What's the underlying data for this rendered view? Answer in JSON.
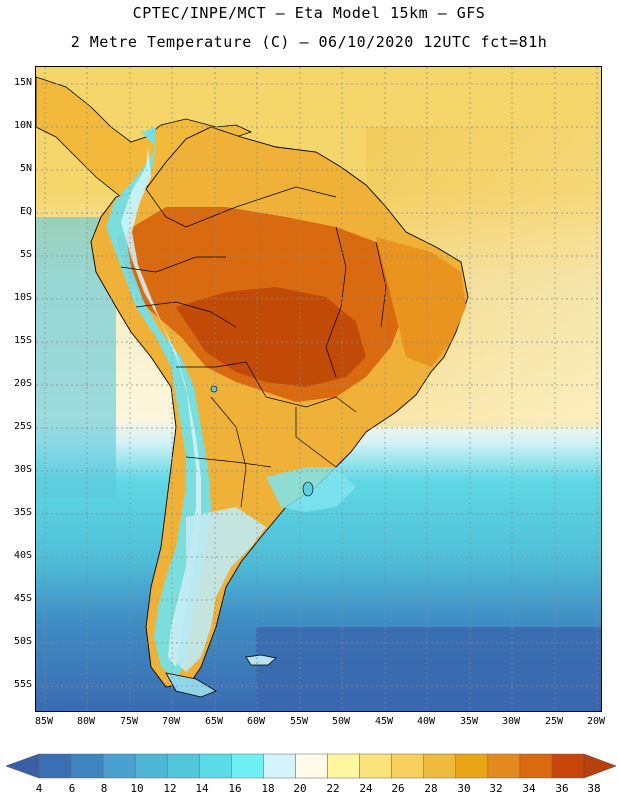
{
  "title": {
    "line1": "CPTEC/INPE/MCT –  Eta Model 15km – GFS",
    "line2": "2 Metre Temperature (C) – 06/10/2020 12UTC fct=81h"
  },
  "map": {
    "region": "South America",
    "latitude_labels": [
      "15N",
      "10N",
      "5N",
      "EQ",
      "5S",
      "10S",
      "15S",
      "20S",
      "25S",
      "30S",
      "35S",
      "40S",
      "45S",
      "50S",
      "55S"
    ],
    "longitude_labels": [
      "85W",
      "80W",
      "75W",
      "70W",
      "65W",
      "60W",
      "55W",
      "50W",
      "45W",
      "40W",
      "35W",
      "30W",
      "25W",
      "20W"
    ]
  },
  "colorbar": {
    "unit": "C",
    "labels": [
      "4",
      "6",
      "8",
      "10",
      "12",
      "14",
      "16",
      "18",
      "20",
      "22",
      "24",
      "26",
      "28",
      "30",
      "32",
      "34",
      "36",
      "38"
    ],
    "colors": [
      "#3a6fb3",
      "#3f86c0",
      "#4aa0cf",
      "#4fb6d6",
      "#52c7dc",
      "#5cdbe6",
      "#6ef0f4",
      "#d2f4fa",
      "#fffbe8",
      "#fff7a0",
      "#fce27a",
      "#f6cf5c",
      "#efbb3c",
      "#eaa517",
      "#e38a1f",
      "#d96a10",
      "#c8450a"
    ]
  }
}
